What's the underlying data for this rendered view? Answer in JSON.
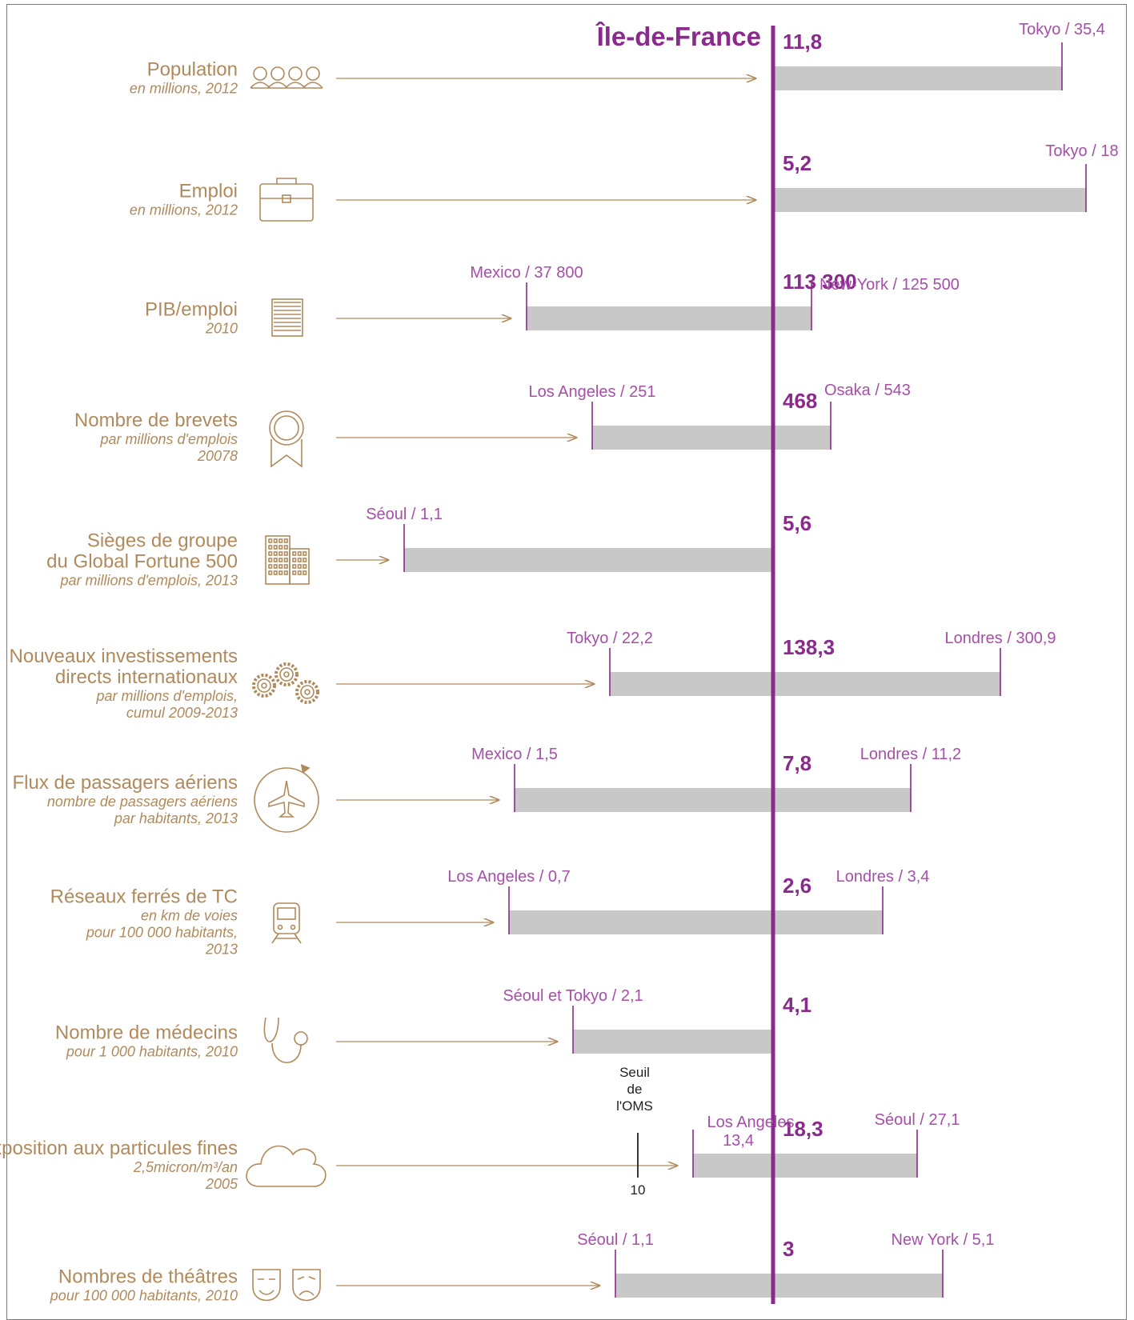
{
  "header": {
    "title": "Île-de-France"
  },
  "colors": {
    "label": "#b08a5c",
    "accent": "#8a2a8c",
    "city": "#a64fa8",
    "bar": "#c8c8c8"
  },
  "chart_data": {
    "type": "bar",
    "orientation": "horizontal",
    "reference_name": "Île-de-France",
    "rows": [
      {
        "id": "population",
        "title": [
          "Population"
        ],
        "subtitle": [
          "en millions, 2012"
        ],
        "icon": "people-icon",
        "ile_value": "11,8",
        "min_label": "",
        "max_label": "Tokyo / 35,4",
        "min": null,
        "ref": 11.8,
        "max": 35.4
      },
      {
        "id": "emploi",
        "title": [
          "Emploi"
        ],
        "subtitle": [
          "en millions, 2012"
        ],
        "icon": "briefcase-icon",
        "ile_value": "5,2",
        "min_label": "",
        "max_label": "Tokyo / 18",
        "min": null,
        "ref": 5.2,
        "max": 18
      },
      {
        "id": "pib",
        "title": [
          "PIB/emploi"
        ],
        "subtitle": [
          "2010"
        ],
        "icon": "banknotes-icon",
        "ile_value": "113 300",
        "min_label": "Mexico / 37 800",
        "max_label": "New-York / 125 500",
        "min": 37800,
        "ref": 113300,
        "max": 125500
      },
      {
        "id": "brevets",
        "title": [
          "Nombre de brevets"
        ],
        "subtitle": [
          "par millions d'emplois",
          "20078"
        ],
        "icon": "award-medal-icon",
        "ile_value": "468",
        "min_label": "Los Angeles / 251",
        "max_label": "Osaka / 543",
        "min": 251,
        "ref": 468,
        "max": 543
      },
      {
        "id": "sieges",
        "title": [
          "Sièges de groupe",
          "du Global Fortune 500"
        ],
        "subtitle": [
          "par millions d'emplois, 2013"
        ],
        "icon": "buildings-icon",
        "ile_value": "5,6",
        "min_label": "Séoul / 1,1",
        "max_label": "",
        "min": 1.1,
        "ref": 5.6,
        "max": null
      },
      {
        "id": "investissements",
        "title": [
          "Nouveaux investissements",
          "directs internationaux"
        ],
        "subtitle": [
          "par millions d'emplois,",
          "cumul 2009-2013"
        ],
        "icon": "gears-icon",
        "ile_value": "138,3",
        "min_label": "Tokyo / 22,2",
        "max_label": "Londres / 300,9",
        "min": 22.2,
        "ref": 138.3,
        "max": 300.9
      },
      {
        "id": "passagers",
        "title": [
          "Flux de passagers aériens"
        ],
        "subtitle": [
          "nombre de passagers aériens",
          "par habitants, 2013"
        ],
        "icon": "airplane-icon",
        "ile_value": "7,8",
        "min_label": "Mexico / 1,5",
        "max_label": "Londres / 11,2",
        "min": 1.5,
        "ref": 7.8,
        "max": 11.2
      },
      {
        "id": "reseaux",
        "title": [
          "Réseaux ferrés de TC"
        ],
        "subtitle": [
          "en km de voies",
          "pour 100 000 habitants,",
          "2013"
        ],
        "icon": "train-icon",
        "ile_value": "2,6",
        "min_label": "Los Angeles / 0,7",
        "max_label": "Londres / 3,4",
        "min": 0.7,
        "ref": 2.6,
        "max": 3.4
      },
      {
        "id": "medecins",
        "title": [
          "Nombre de médecins"
        ],
        "subtitle": [
          "pour 1 000 habitants, 2010"
        ],
        "icon": "stethoscope-icon",
        "ile_value": "4,1",
        "min_label": "Séoul et Tokyo / 2,1",
        "max_label": "",
        "min": 2.1,
        "ref": 4.1,
        "max": null
      },
      {
        "id": "particules",
        "title": [
          "Exposition aux particules fines"
        ],
        "subtitle": [
          "2,5micron/m³/an",
          "2005"
        ],
        "icon": "cloud-icon",
        "ile_value": "18,3",
        "min_label": "Los Angeles",
        "min_label_2": "13,4",
        "max_label": "Séoul / 27,1",
        "min": 13.4,
        "ref": 18.3,
        "max": 27.1,
        "threshold": {
          "label": [
            "Seuil",
            "de",
            "l'OMS"
          ],
          "value_label": "10",
          "value": 10
        }
      },
      {
        "id": "theatres",
        "title": [
          "Nombres de théâtres"
        ],
        "subtitle": [
          "pour 100 000 habitants, 2010"
        ],
        "icon": "theater-masks-icon",
        "ile_value": "3",
        "min_label": "Séoul / 1,1",
        "max_label": "New York / 5,1",
        "min": 1.1,
        "ref": 3,
        "max": 5.1
      }
    ]
  }
}
